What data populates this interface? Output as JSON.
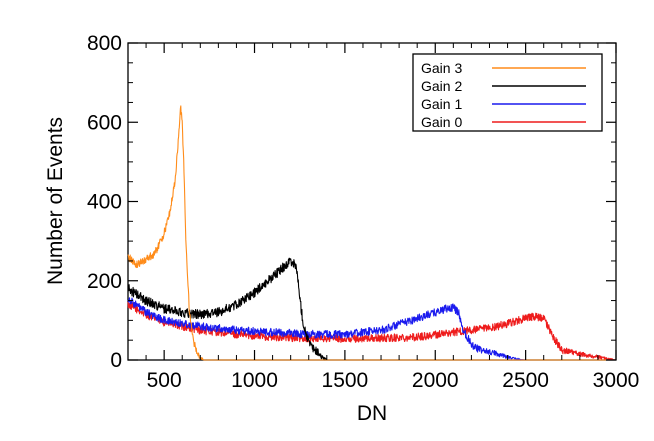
{
  "chart_data": {
    "type": "line",
    "title": "",
    "xlabel": "DN",
    "ylabel": "Number of Events",
    "xlim": [
      300,
      3000
    ],
    "ylim": [
      0,
      800
    ],
    "x_ticks": [
      500,
      1000,
      1500,
      2000,
      2500,
      3000
    ],
    "y_ticks": [
      0,
      200,
      400,
      600,
      800
    ],
    "x_tick_labels": [
      "500",
      "1000",
      "1500",
      "2000",
      "2500",
      "3000"
    ],
    "y_tick_labels": [
      "0",
      "200",
      "400",
      "600",
      "800"
    ],
    "grid": false,
    "legend_position": "top-right",
    "series": [
      {
        "name": "Gain 0",
        "color": "#ee1c1c",
        "noise": 10,
        "x": [
          300,
          400,
          500,
          700,
          900,
          1100,
          1300,
          1500,
          1700,
          1900,
          2100,
          2300,
          2400,
          2500,
          2550,
          2600,
          2650,
          2700,
          2800,
          2900,
          2950,
          3000
        ],
        "y": [
          140,
          115,
          95,
          75,
          65,
          58,
          55,
          54,
          55,
          58,
          70,
          80,
          92,
          105,
          110,
          105,
          60,
          25,
          15,
          8,
          3,
          0
        ]
      },
      {
        "name": "Gain 1",
        "color": "#1a1aee",
        "noise": 10,
        "x": [
          300,
          400,
          500,
          700,
          900,
          1100,
          1300,
          1500,
          1700,
          1800,
          1900,
          2000,
          2050,
          2100,
          2130,
          2150,
          2200,
          2250,
          2300,
          2350,
          2400,
          2450,
          2500
        ],
        "y": [
          155,
          120,
          100,
          85,
          75,
          70,
          65,
          65,
          75,
          90,
          105,
          120,
          128,
          132,
          120,
          80,
          40,
          25,
          20,
          15,
          8,
          2,
          0
        ]
      },
      {
        "name": "Gain 2",
        "color": "#000000",
        "noise": 12,
        "x": [
          300,
          400,
          500,
          600,
          700,
          800,
          900,
          1000,
          1100,
          1150,
          1200,
          1230,
          1250,
          1270,
          1300,
          1320,
          1350,
          1370,
          1400
        ],
        "y": [
          180,
          150,
          130,
          120,
          115,
          120,
          140,
          170,
          210,
          230,
          250,
          240,
          160,
          90,
          45,
          30,
          20,
          8,
          0
        ]
      },
      {
        "name": "Gain 3",
        "color": "#ff8c1a",
        "noise": 10,
        "x": [
          300,
          350,
          400,
          450,
          500,
          530,
          560,
          580,
          590,
          600,
          610,
          620,
          640,
          660,
          680,
          700,
          720,
          1000,
          1500,
          2000,
          2500,
          3000
        ],
        "y": [
          260,
          240,
          255,
          270,
          320,
          370,
          450,
          560,
          640,
          600,
          480,
          300,
          120,
          50,
          20,
          5,
          0,
          0,
          0,
          0,
          0,
          0
        ]
      }
    ]
  }
}
